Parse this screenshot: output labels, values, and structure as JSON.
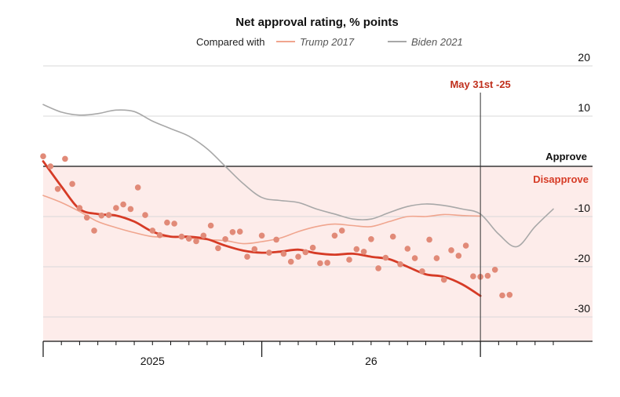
{
  "chart_data": {
    "type": "line",
    "title": "Net approval rating, % points",
    "legend": {
      "prefix": "Compared with",
      "placement": "top",
      "entries": [
        {
          "name": "Trump 2017",
          "color": "#f0a58e"
        },
        {
          "name": "Biden 2021",
          "color": "#a8a8a8"
        }
      ]
    },
    "xlabel": "",
    "ylabel": "",
    "x_unit": "months since Jan 2024",
    "xlim": [
      0,
      28
    ],
    "ylim": [
      -35,
      20
    ],
    "y_ticks": [
      20,
      10,
      -10,
      -20,
      -30
    ],
    "x_tick_labels": [
      {
        "x": 12,
        "label": "2025"
      },
      {
        "x": 24,
        "label": "26"
      }
    ],
    "zero_line": true,
    "regions": {
      "approve_label": "Approve",
      "disapprove_label": "Disapprove",
      "disapprove_color": "#fdecea"
    },
    "marker": {
      "x": 24,
      "label": "May 31st -25"
    },
    "colors": {
      "current": "#d63b26",
      "dots": "#e18a78",
      "trump": "#f0a58e",
      "biden": "#a8a8a8"
    },
    "series": [
      {
        "name": "Biden 2021",
        "values": [
          [
            0,
            12.3
          ],
          [
            1,
            10.8
          ],
          [
            2,
            10.2
          ],
          [
            3,
            10.5
          ],
          [
            4,
            11.2
          ],
          [
            5,
            10.9
          ],
          [
            6,
            9.0
          ],
          [
            7,
            7.5
          ],
          [
            8,
            6.0
          ],
          [
            9,
            3.5
          ],
          [
            10,
            0
          ],
          [
            11,
            -3.5
          ],
          [
            12,
            -6.2
          ],
          [
            13,
            -6.8
          ],
          [
            14,
            -7.2
          ],
          [
            15,
            -8.5
          ],
          [
            16,
            -9.5
          ],
          [
            17,
            -10.5
          ],
          [
            18,
            -10.5
          ],
          [
            19,
            -9.2
          ],
          [
            20,
            -8.0
          ],
          [
            21,
            -7.5
          ],
          [
            22,
            -7.8
          ],
          [
            23,
            -8.5
          ],
          [
            24,
            -9.5
          ],
          [
            25,
            -13.5
          ],
          [
            26,
            -16.0
          ],
          [
            27,
            -12.0
          ],
          [
            28,
            -8.5
          ]
        ]
      },
      {
        "name": "Trump 2017",
        "values": [
          [
            0,
            -5.8
          ],
          [
            1,
            -7.2
          ],
          [
            2,
            -9.0
          ],
          [
            3,
            -11.0
          ],
          [
            4,
            -12.2
          ],
          [
            5,
            -13.2
          ],
          [
            6,
            -14.0
          ],
          [
            7,
            -14.0
          ],
          [
            8,
            -14.3
          ],
          [
            9,
            -14.6
          ],
          [
            10,
            -14.8
          ],
          [
            11,
            -15.4
          ],
          [
            12,
            -15.0
          ],
          [
            13,
            -14.3
          ],
          [
            14,
            -13.0
          ],
          [
            15,
            -12.0
          ],
          [
            16,
            -11.5
          ],
          [
            17,
            -11.8
          ],
          [
            18,
            -12.0
          ],
          [
            19,
            -11.0
          ],
          [
            20,
            -10.0
          ],
          [
            21,
            -10.0
          ],
          [
            22,
            -9.6
          ],
          [
            23,
            -9.8
          ],
          [
            24,
            -9.9
          ]
        ]
      },
      {
        "name": "",
        "values": [
          [
            0,
            1.0
          ],
          [
            1,
            -4.0
          ],
          [
            2,
            -8.5
          ],
          [
            3,
            -9.5
          ],
          [
            4,
            -9.8
          ],
          [
            5,
            -11.0
          ],
          [
            6,
            -13.0
          ],
          [
            7,
            -14.0
          ],
          [
            8,
            -14.0
          ],
          [
            9,
            -14.5
          ],
          [
            10,
            -15.8
          ],
          [
            11,
            -16.8
          ],
          [
            12,
            -17.2
          ],
          [
            13,
            -17.0
          ],
          [
            14,
            -16.6
          ],
          [
            15,
            -17.3
          ],
          [
            16,
            -17.6
          ],
          [
            17,
            -17.4
          ],
          [
            18,
            -18.0
          ],
          [
            19,
            -18.5
          ],
          [
            20,
            -20.0
          ],
          [
            21,
            -21.5
          ],
          [
            22,
            -22.0
          ],
          [
            23,
            -23.5
          ],
          [
            24,
            -25.8
          ]
        ]
      }
    ],
    "polls": [
      [
        0,
        2
      ],
      [
        0.4,
        0
      ],
      [
        0.8,
        -4.5
      ],
      [
        1.2,
        1.5
      ],
      [
        1.6,
        -3.5
      ],
      [
        2,
        -8.3
      ],
      [
        2.4,
        -10.2
      ],
      [
        2.8,
        -12.8
      ],
      [
        3.2,
        -9.8
      ],
      [
        3.6,
        -9.7
      ],
      [
        4,
        -8.3
      ],
      [
        4.4,
        -7.6
      ],
      [
        4.8,
        -8.5
      ],
      [
        5.2,
        -4.2
      ],
      [
        5.6,
        -9.7
      ],
      [
        6,
        -12.8
      ],
      [
        6.4,
        -13.7
      ],
      [
        6.8,
        -11.2
      ],
      [
        7.2,
        -11.4
      ],
      [
        7.6,
        -14.0
      ],
      [
        8,
        -14.4
      ],
      [
        8.4,
        -14.9
      ],
      [
        8.8,
        -13.8
      ],
      [
        9.2,
        -11.8
      ],
      [
        9.6,
        -16.3
      ],
      [
        10,
        -14.5
      ],
      [
        10.4,
        -13.1
      ],
      [
        10.8,
        -13.0
      ],
      [
        11.2,
        -18.0
      ],
      [
        11.6,
        -16.5
      ],
      [
        12,
        -13.8
      ],
      [
        12.4,
        -17.2
      ],
      [
        12.8,
        -14.6
      ],
      [
        13.2,
        -17.4
      ],
      [
        13.6,
        -19.0
      ],
      [
        14,
        -18.0
      ],
      [
        14.4,
        -17.1
      ],
      [
        14.8,
        -16.2
      ],
      [
        15.2,
        -19.3
      ],
      [
        15.6,
        -19.2
      ],
      [
        16,
        -13.8
      ],
      [
        16.4,
        -12.8
      ],
      [
        16.8,
        -18.6
      ],
      [
        17.2,
        -16.5
      ],
      [
        17.6,
        -17.0
      ],
      [
        18,
        -14.5
      ],
      [
        18.4,
        -20.3
      ],
      [
        18.8,
        -18.2
      ],
      [
        19.2,
        -14.0
      ],
      [
        19.6,
        -19.5
      ],
      [
        20,
        -16.4
      ],
      [
        20.4,
        -18.3
      ],
      [
        20.8,
        -20.9
      ],
      [
        21.2,
        -14.6
      ],
      [
        21.6,
        -18.3
      ],
      [
        22,
        -22.6
      ],
      [
        22.4,
        -16.7
      ],
      [
        22.8,
        -17.8
      ],
      [
        23.2,
        -15.8
      ],
      [
        23.6,
        -21.9
      ],
      [
        24,
        -22.0
      ],
      [
        24.4,
        -21.8
      ],
      [
        24.8,
        -20.6
      ],
      [
        25.2,
        -25.7
      ],
      [
        25.6,
        -25.6
      ]
    ]
  }
}
